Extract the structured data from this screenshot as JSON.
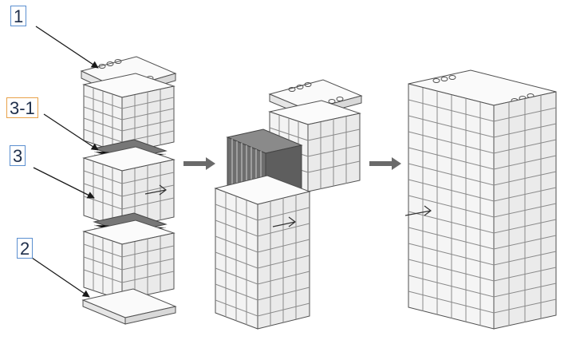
{
  "labels": {
    "part_1": "1",
    "part_3_1": "3-1",
    "part_3": "3",
    "part_2": "2"
  },
  "colors": {
    "line": "#505050",
    "frame_fill": "#f3f3f3",
    "grid": "#8a8a8a",
    "plate_dark": "#6e6e6e",
    "arrow": "#6a6a6a",
    "label_border_blue": "#5b8fd0",
    "label_border_orange": "#e8a24a"
  },
  "icons": [
    "arrow-right-icon"
  ]
}
